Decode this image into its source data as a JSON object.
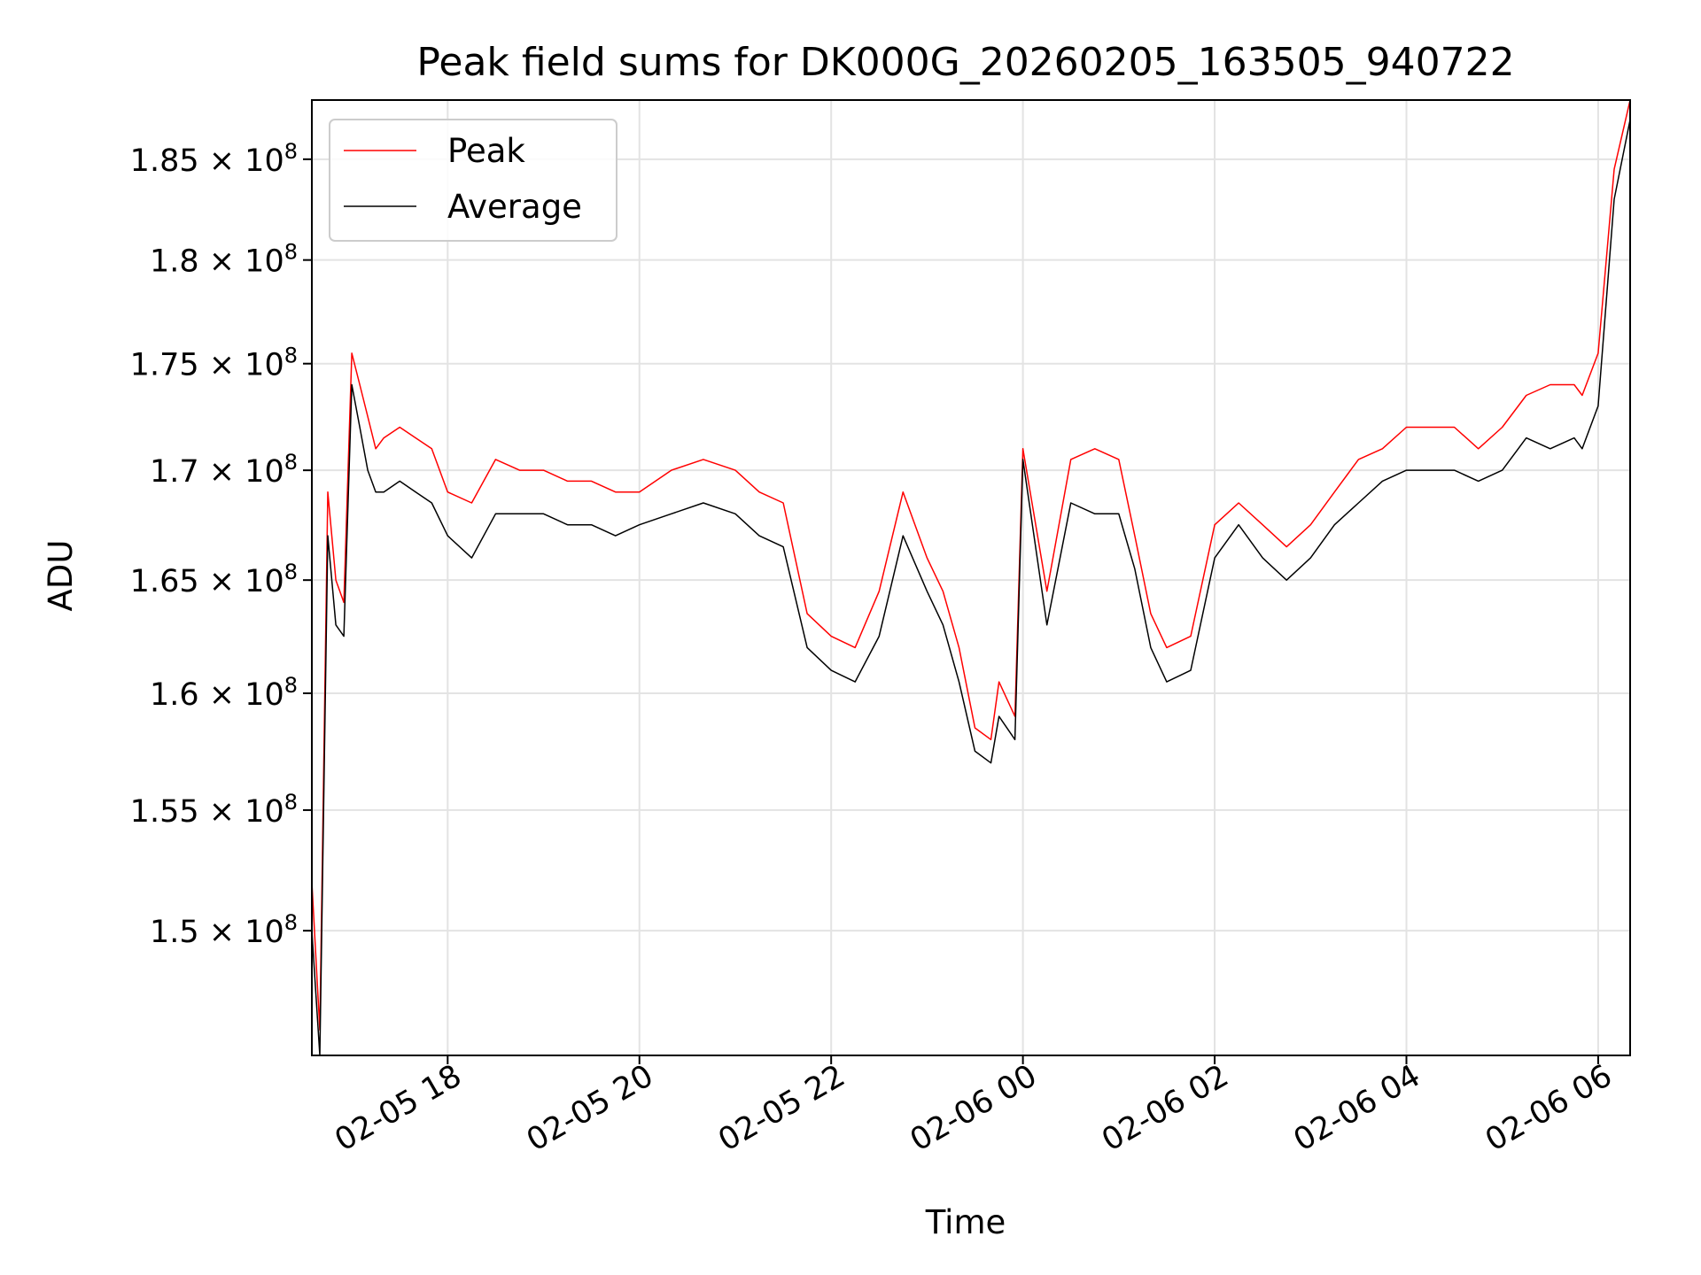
{
  "chart_data": {
    "type": "line",
    "title": "Peak field sums for DK000G_20260205_163505_940722",
    "xlabel": "Time",
    "ylabel": "ADU",
    "y_scale": "log",
    "ylim": [
      145000000,
      188000000
    ],
    "xlim": [
      "2026-02-05 16:35",
      "2026-02-06 06:20"
    ],
    "grid": true,
    "legend_position": "upper-left",
    "x_ticks": [
      {
        "value": "2026-02-05 18:00",
        "label": "02-05 18"
      },
      {
        "value": "2026-02-05 20:00",
        "label": "02-05 20"
      },
      {
        "value": "2026-02-05 22:00",
        "label": "02-05 22"
      },
      {
        "value": "2026-02-06 00:00",
        "label": "02-06 00"
      },
      {
        "value": "2026-02-06 02:00",
        "label": "02-06 02"
      },
      {
        "value": "2026-02-06 04:00",
        "label": "02-06 04"
      },
      {
        "value": "2026-02-06 06:00",
        "label": "02-06 06"
      }
    ],
    "y_ticks": [
      {
        "value": 150000000,
        "mantissa": "1.5",
        "exponent": "8"
      },
      {
        "value": 155000000,
        "mantissa": "1.55",
        "exponent": "8"
      },
      {
        "value": 160000000,
        "mantissa": "1.6",
        "exponent": "8"
      },
      {
        "value": 165000000,
        "mantissa": "1.65",
        "exponent": "8"
      },
      {
        "value": 170000000,
        "mantissa": "1.7",
        "exponent": "8"
      },
      {
        "value": 175000000,
        "mantissa": "1.75",
        "exponent": "8"
      },
      {
        "value": 180000000,
        "mantissa": "1.8",
        "exponent": "8"
      },
      {
        "value": 185000000,
        "mantissa": "1.85",
        "exponent": "8"
      }
    ],
    "series": [
      {
        "name": "Peak",
        "color": "#ff0000",
        "x": [
          "2026-02-05 16:35",
          "2026-02-05 16:40",
          "2026-02-05 16:45",
          "2026-02-05 16:50",
          "2026-02-05 16:55",
          "2026-02-05 17:00",
          "2026-02-05 17:05",
          "2026-02-05 17:10",
          "2026-02-05 17:15",
          "2026-02-05 17:20",
          "2026-02-05 17:30",
          "2026-02-05 17:40",
          "2026-02-05 17:50",
          "2026-02-05 18:00",
          "2026-02-05 18:15",
          "2026-02-05 18:30",
          "2026-02-05 18:45",
          "2026-02-05 19:00",
          "2026-02-05 19:15",
          "2026-02-05 19:30",
          "2026-02-05 19:45",
          "2026-02-05 20:00",
          "2026-02-05 20:20",
          "2026-02-05 20:40",
          "2026-02-05 21:00",
          "2026-02-05 21:15",
          "2026-02-05 21:30",
          "2026-02-05 21:45",
          "2026-02-05 22:00",
          "2026-02-05 22:15",
          "2026-02-05 22:30",
          "2026-02-05 22:45",
          "2026-02-05 23:00",
          "2026-02-05 23:10",
          "2026-02-05 23:20",
          "2026-02-05 23:30",
          "2026-02-05 23:40",
          "2026-02-05 23:45",
          "2026-02-05 23:55",
          "2026-02-06 00:00",
          "2026-02-06 00:15",
          "2026-02-06 00:30",
          "2026-02-06 00:45",
          "2026-02-06 01:00",
          "2026-02-06 01:10",
          "2026-02-06 01:20",
          "2026-02-06 01:30",
          "2026-02-06 01:45",
          "2026-02-06 02:00",
          "2026-02-06 02:15",
          "2026-02-06 02:30",
          "2026-02-06 02:45",
          "2026-02-06 03:00",
          "2026-02-06 03:15",
          "2026-02-06 03:30",
          "2026-02-06 03:45",
          "2026-02-06 04:00",
          "2026-02-06 04:15",
          "2026-02-06 04:30",
          "2026-02-06 04:45",
          "2026-02-06 05:00",
          "2026-02-06 05:15",
          "2026-02-06 05:30",
          "2026-02-06 05:45",
          "2026-02-06 05:50",
          "2026-02-06 06:00",
          "2026-02-06 06:10",
          "2026-02-06 06:20"
        ],
        "values": [
          152000000,
          146000000,
          169000000,
          165000000,
          164000000,
          175500000,
          174000000,
          172500000,
          171000000,
          171500000,
          172000000,
          171500000,
          171000000,
          169000000,
          168500000,
          170500000,
          170000000,
          170000000,
          169500000,
          169500000,
          169000000,
          169000000,
          170000000,
          170500000,
          170000000,
          169000000,
          168500000,
          163500000,
          162500000,
          162000000,
          164500000,
          169000000,
          166000000,
          164500000,
          162000000,
          158500000,
          158000000,
          160500000,
          159000000,
          171000000,
          164500000,
          170500000,
          171000000,
          170500000,
          167000000,
          163500000,
          162000000,
          162500000,
          167500000,
          168500000,
          167500000,
          166500000,
          167500000,
          169000000,
          170500000,
          171000000,
          172000000,
          172000000,
          172000000,
          171000000,
          172000000,
          173500000,
          174000000,
          174000000,
          173500000,
          175500000,
          184500000,
          188000000
        ]
      },
      {
        "name": "Average",
        "color": "#000000",
        "x": [
          "2026-02-05 16:35",
          "2026-02-05 16:40",
          "2026-02-05 16:45",
          "2026-02-05 16:50",
          "2026-02-05 16:55",
          "2026-02-05 17:00",
          "2026-02-05 17:05",
          "2026-02-05 17:10",
          "2026-02-05 17:15",
          "2026-02-05 17:20",
          "2026-02-05 17:30",
          "2026-02-05 17:40",
          "2026-02-05 17:50",
          "2026-02-05 18:00",
          "2026-02-05 18:15",
          "2026-02-05 18:30",
          "2026-02-05 18:45",
          "2026-02-05 19:00",
          "2026-02-05 19:15",
          "2026-02-05 19:30",
          "2026-02-05 19:45",
          "2026-02-05 20:00",
          "2026-02-05 20:20",
          "2026-02-05 20:40",
          "2026-02-05 21:00",
          "2026-02-05 21:15",
          "2026-02-05 21:30",
          "2026-02-05 21:45",
          "2026-02-05 22:00",
          "2026-02-05 22:15",
          "2026-02-05 22:30",
          "2026-02-05 22:45",
          "2026-02-05 23:00",
          "2026-02-05 23:10",
          "2026-02-05 23:20",
          "2026-02-05 23:30",
          "2026-02-05 23:40",
          "2026-02-05 23:45",
          "2026-02-05 23:55",
          "2026-02-06 00:00",
          "2026-02-06 00:15",
          "2026-02-06 00:30",
          "2026-02-06 00:45",
          "2026-02-06 01:00",
          "2026-02-06 01:10",
          "2026-02-06 01:20",
          "2026-02-06 01:30",
          "2026-02-06 01:45",
          "2026-02-06 02:00",
          "2026-02-06 02:15",
          "2026-02-06 02:30",
          "2026-02-06 02:45",
          "2026-02-06 03:00",
          "2026-02-06 03:15",
          "2026-02-06 03:30",
          "2026-02-06 03:45",
          "2026-02-06 04:00",
          "2026-02-06 04:15",
          "2026-02-06 04:30",
          "2026-02-06 04:45",
          "2026-02-06 05:00",
          "2026-02-06 05:15",
          "2026-02-06 05:30",
          "2026-02-06 05:45",
          "2026-02-06 05:50",
          "2026-02-06 06:00",
          "2026-02-06 06:10",
          "2026-02-06 06:20"
        ],
        "values": [
          150000000,
          145000000,
          167000000,
          163000000,
          162500000,
          174000000,
          172000000,
          170000000,
          169000000,
          169000000,
          169500000,
          169000000,
          168500000,
          167000000,
          166000000,
          168000000,
          168000000,
          168000000,
          167500000,
          167500000,
          167000000,
          167500000,
          168000000,
          168500000,
          168000000,
          167000000,
          166500000,
          162000000,
          161000000,
          160500000,
          162500000,
          167000000,
          164500000,
          163000000,
          160500000,
          157500000,
          157000000,
          159000000,
          158000000,
          170500000,
          163000000,
          168500000,
          168000000,
          168000000,
          165500000,
          162000000,
          160500000,
          161000000,
          166000000,
          167500000,
          166000000,
          165000000,
          166000000,
          167500000,
          168500000,
          169500000,
          170000000,
          170000000,
          170000000,
          169500000,
          170000000,
          171500000,
          171000000,
          171500000,
          171000000,
          173000000,
          183000000,
          187000000
        ]
      }
    ]
  }
}
